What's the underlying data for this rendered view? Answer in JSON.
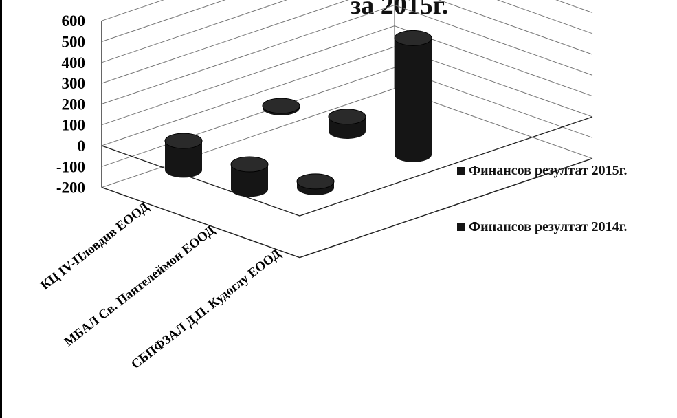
{
  "chart_data": {
    "type": "bar",
    "title": "за 2015г.",
    "categories": [
      "КЦ IV-Пловдив ЕООД",
      "МБАЛ Св. Пантелеймон ЕООД",
      "СБПФЗАЛ Д.П. Кудоглу ЕООД"
    ],
    "series": [
      {
        "name": "Финансов резултат 2015г.",
        "values": [
          10,
          70,
          560
        ],
        "color": "#151515"
      },
      {
        "name": "Финансов резултат 2014г.",
        "values": [
          -140,
          -120,
          30
        ],
        "color": "#151515"
      }
    ],
    "yticks": [
      600,
      500,
      400,
      300,
      200,
      100,
      0,
      -100,
      -200
    ],
    "ylim": [
      -200,
      600
    ],
    "grid": true,
    "legend_position": "right"
  }
}
